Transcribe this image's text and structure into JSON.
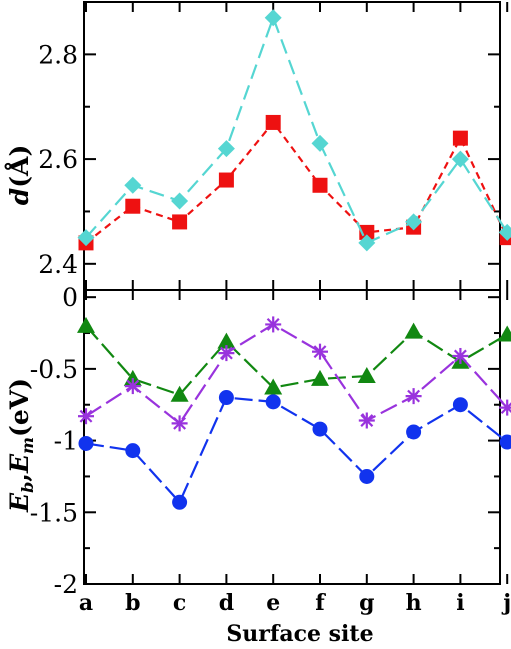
{
  "chart_data": [
    {
      "type": "line",
      "panel": "top",
      "ylabel": "d(Å)",
      "ylabel_parts": {
        "var": "d",
        "unit": "(Å)"
      },
      "ylim": [
        2.35,
        2.9
      ],
      "yticks": [
        2.4,
        2.6,
        2.8
      ],
      "ytick_labels": [
        "2.4",
        "2.6",
        "2.8"
      ],
      "categories": [
        "a",
        "b",
        "c",
        "d",
        "e",
        "f",
        "g",
        "h",
        "i",
        "j"
      ],
      "grid": false,
      "series": [
        {
          "values": [
            2.44,
            2.51,
            2.48,
            2.56,
            2.67,
            2.55,
            2.46,
            2.47,
            2.64,
            2.45
          ],
          "color": "#ee1111",
          "marker": "square",
          "dash": "7 5"
        },
        {
          "values": [
            2.45,
            2.55,
            2.52,
            2.62,
            2.87,
            2.63,
            2.44,
            2.48,
            2.6,
            2.46
          ],
          "color": "#55d6d2",
          "marker": "diamond",
          "dash": "15 7"
        }
      ]
    },
    {
      "type": "line",
      "panel": "bottom",
      "ylabel": "Eb,Em(eV)",
      "ylabel_parts": {
        "e1": "E",
        "s1": "b",
        "comma": ",",
        "e2": "E",
        "s2": "m",
        "unit": "(eV)"
      },
      "ylim": [
        -2.0,
        0.05
      ],
      "yticks": [
        0,
        -0.5,
        -1,
        -1.5,
        -2
      ],
      "ytick_labels": [
        "0",
        "-0.5",
        "-1",
        "-1.5",
        "-2"
      ],
      "categories": [
        "a",
        "b",
        "c",
        "d",
        "e",
        "f",
        "g",
        "h",
        "i",
        "j"
      ],
      "xlabel": "Surface site",
      "grid": false,
      "series": [
        {
          "values": [
            -0.2,
            -0.57,
            -0.68,
            -0.31,
            -0.63,
            -0.57,
            -0.55,
            -0.24,
            -0.45,
            -0.26
          ],
          "color": "#118811",
          "marker": "triangle",
          "dash": "18 6"
        },
        {
          "values": [
            -0.83,
            -0.62,
            -0.88,
            -0.39,
            -0.19,
            -0.38,
            -0.86,
            -0.69,
            -0.41,
            -0.77
          ],
          "color": "#9933dd",
          "marker": "asterisk",
          "dash": "18 6"
        },
        {
          "values": [
            -1.02,
            -1.07,
            -1.43,
            -0.7,
            -0.73,
            -0.92,
            -1.25,
            -0.94,
            -0.75,
            -1.01
          ],
          "color": "#1133ee",
          "marker": "circle",
          "dash": "18 6"
        }
      ]
    }
  ]
}
